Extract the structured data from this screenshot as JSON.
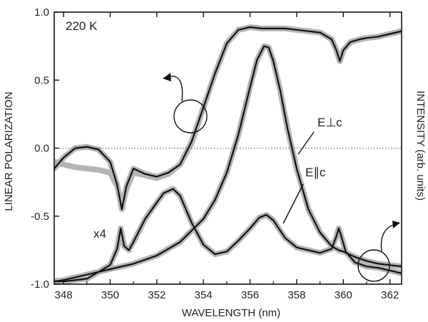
{
  "chart_data": {
    "type": "line",
    "annotation_temperature": "220 K",
    "xlabel": "WAVELENGTH (nm)",
    "ylabel_left": "LINEAR POLARIZATION",
    "ylabel_right": "INTENSITY (arb. units)",
    "xlim": [
      347.6,
      362.5
    ],
    "ylim": [
      -1.0,
      1.0
    ],
    "x_ticks": [
      348,
      350,
      352,
      354,
      356,
      358,
      360,
      362
    ],
    "y_ticks": [
      -1.0,
      -0.5,
      0.0,
      0.5,
      1.0
    ],
    "y_tick_labels": [
      "-1.0",
      "-0.5",
      "0.0",
      "0.5",
      "1.0"
    ],
    "reference_line": {
      "y": 0.0,
      "style": "dotted"
    },
    "labels": {
      "perp": "E⊥c",
      "par": "E∥c",
      "scale": "x4"
    },
    "colors": {
      "fit": "#111111",
      "measured": "#b4b4b4"
    },
    "series": [
      {
        "role": "polarization",
        "axis": "left",
        "x": [
          347.6,
          348.0,
          348.5,
          349.0,
          349.5,
          350.0,
          350.3,
          350.5,
          350.7,
          351.0,
          351.5,
          352.0,
          352.5,
          353.0,
          353.5,
          354.0,
          354.5,
          355.0,
          355.5,
          356.0,
          356.5,
          357.0,
          357.5,
          358.0,
          358.5,
          359.0,
          359.5,
          359.7,
          359.85,
          360.0,
          360.3,
          360.7,
          361.0,
          361.5,
          362.0,
          362.5
        ],
        "y": [
          -0.15,
          -0.07,
          0.0,
          0.01,
          -0.01,
          -0.1,
          -0.27,
          -0.45,
          -0.28,
          -0.15,
          -0.19,
          -0.21,
          -0.18,
          -0.12,
          0.05,
          0.3,
          0.55,
          0.77,
          0.87,
          0.89,
          0.88,
          0.88,
          0.88,
          0.87,
          0.86,
          0.85,
          0.8,
          0.72,
          0.64,
          0.72,
          0.78,
          0.8,
          0.81,
          0.82,
          0.84,
          0.86
        ]
      },
      {
        "role": "measured_polarization",
        "axis": "left",
        "x": [
          347.6,
          348.0,
          348.5,
          349.0,
          349.5,
          350.0,
          350.3,
          350.5,
          350.7,
          351.0,
          351.5,
          352.0,
          352.5,
          353.0,
          353.5,
          354.0,
          354.5,
          355.0,
          355.5,
          356.0,
          356.5,
          357.0,
          357.5,
          358.0,
          358.5,
          359.0,
          359.5,
          359.7,
          359.85,
          360.0,
          360.3,
          360.7,
          361.0,
          361.5,
          362.0,
          362.5
        ],
        "y": [
          -0.1,
          -0.12,
          -0.14,
          -0.15,
          -0.16,
          -0.18,
          -0.28,
          -0.43,
          -0.3,
          -0.18,
          -0.2,
          -0.22,
          -0.19,
          -0.12,
          0.04,
          0.3,
          0.55,
          0.77,
          0.87,
          0.89,
          0.88,
          0.88,
          0.88,
          0.87,
          0.86,
          0.85,
          0.8,
          0.72,
          0.64,
          0.72,
          0.78,
          0.8,
          0.81,
          0.82,
          0.84,
          0.86
        ]
      },
      {
        "name": "E⊥c",
        "axis": "right",
        "x": [
          347.6,
          348.0,
          349.0,
          350.0,
          351.0,
          352.0,
          353.0,
          354.0,
          354.5,
          355.0,
          355.5,
          356.0,
          356.3,
          356.6,
          356.8,
          357.0,
          357.3,
          357.6,
          358.0,
          358.5,
          359.0,
          359.5,
          359.8,
          360.0,
          360.5,
          361.0,
          361.5,
          362.0,
          362.5
        ],
        "y": [
          -0.98,
          -0.97,
          -0.93,
          -0.89,
          -0.85,
          -0.79,
          -0.69,
          -0.52,
          -0.38,
          -0.18,
          0.1,
          0.45,
          0.65,
          0.75,
          0.74,
          0.64,
          0.42,
          0.15,
          -0.15,
          -0.45,
          -0.62,
          -0.72,
          -0.75,
          -0.76,
          -0.8,
          -0.83,
          -0.85,
          -0.86,
          -0.87
        ]
      },
      {
        "name": "E∥c",
        "axis": "right",
        "x": [
          347.6,
          348.0,
          349.0,
          350.0,
          350.3,
          350.45,
          350.6,
          350.8,
          351.0,
          351.5,
          352.0,
          352.3,
          352.7,
          353.0,
          353.5,
          354.0,
          354.5,
          355.0,
          355.5,
          356.0,
          356.4,
          356.7,
          357.0,
          357.5,
          358.0,
          358.5,
          359.0,
          359.5,
          359.7,
          359.8,
          359.9,
          360.1,
          360.5,
          361.0,
          361.5,
          362.0,
          362.5
        ],
        "y": [
          -0.98,
          -0.98,
          -0.96,
          -0.86,
          -0.74,
          -0.59,
          -0.72,
          -0.75,
          -0.69,
          -0.52,
          -0.4,
          -0.33,
          -0.3,
          -0.35,
          -0.55,
          -0.71,
          -0.78,
          -0.76,
          -0.68,
          -0.59,
          -0.51,
          -0.49,
          -0.53,
          -0.66,
          -0.73,
          -0.75,
          -0.77,
          -0.74,
          -0.65,
          -0.59,
          -0.64,
          -0.76,
          -0.84,
          -0.87,
          -0.88,
          -0.9,
          -0.92
        ]
      }
    ]
  }
}
